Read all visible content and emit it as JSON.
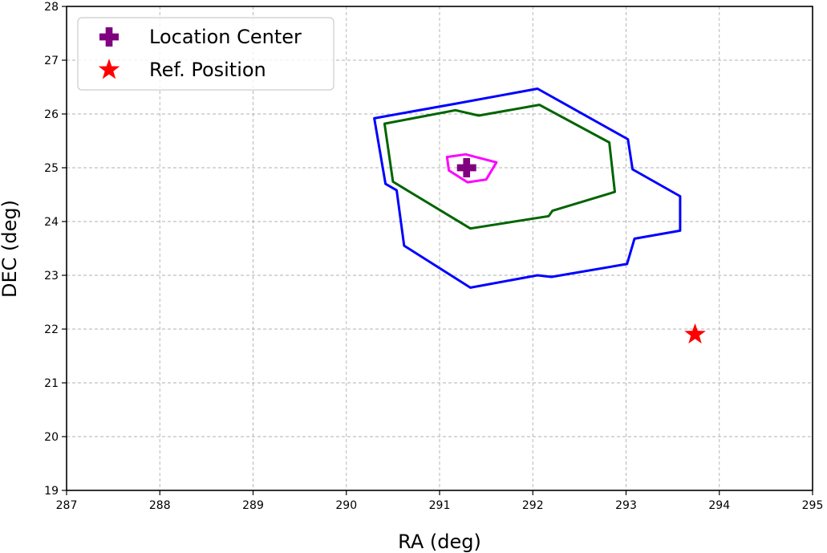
{
  "chart_data": {
    "type": "line",
    "xlabel": "RA (deg)",
    "ylabel": "DEC (deg)",
    "xlim": [
      287,
      295
    ],
    "ylim": [
      19,
      28
    ],
    "x_ticks": [
      287,
      288,
      289,
      290,
      291,
      292,
      293,
      294,
      295
    ],
    "y_ticks": [
      19,
      20,
      21,
      22,
      23,
      24,
      25,
      26,
      27,
      28
    ],
    "grid": true,
    "legend_position": "top-left",
    "contours": [
      {
        "color": "#0000ff",
        "points": [
          [
            292.05,
            26.47
          ],
          [
            293.02,
            25.53
          ],
          [
            293.07,
            24.97
          ],
          [
            293.58,
            24.47
          ],
          [
            293.58,
            23.83
          ],
          [
            293.09,
            23.68
          ],
          [
            293.01,
            23.21
          ],
          [
            292.2,
            22.97
          ],
          [
            292.05,
            23.0
          ],
          [
            291.33,
            22.77
          ],
          [
            290.62,
            23.55
          ],
          [
            290.54,
            24.58
          ],
          [
            290.42,
            24.7
          ],
          [
            290.3,
            25.92
          ],
          [
            291.2,
            26.2
          ]
        ]
      },
      {
        "color": "#006400",
        "points": [
          [
            292.07,
            26.17
          ],
          [
            292.82,
            25.47
          ],
          [
            292.88,
            24.55
          ],
          [
            292.21,
            24.2
          ],
          [
            292.17,
            24.1
          ],
          [
            291.33,
            23.87
          ],
          [
            290.5,
            24.74
          ],
          [
            290.41,
            25.82
          ],
          [
            291.17,
            26.07
          ],
          [
            291.42,
            25.97
          ]
        ]
      },
      {
        "color": "#ff00ff",
        "points": [
          [
            291.28,
            25.25
          ],
          [
            291.61,
            25.1
          ],
          [
            291.5,
            24.78
          ],
          [
            291.3,
            24.73
          ],
          [
            291.1,
            24.95
          ],
          [
            291.08,
            25.2
          ]
        ]
      }
    ],
    "markers": [
      {
        "name": "Location Center",
        "x": 291.29,
        "y": 25.0,
        "shape": "plus",
        "color": "#800080"
      },
      {
        "name": "Ref. Position",
        "x": 293.74,
        "y": 21.9,
        "shape": "star",
        "color": "#ff0000"
      }
    ],
    "legend": {
      "entries": [
        {
          "label": "Location Center",
          "shape": "plus",
          "color": "#800080"
        },
        {
          "label": "Ref. Position",
          "shape": "star",
          "color": "#ff0000"
        }
      ]
    }
  }
}
